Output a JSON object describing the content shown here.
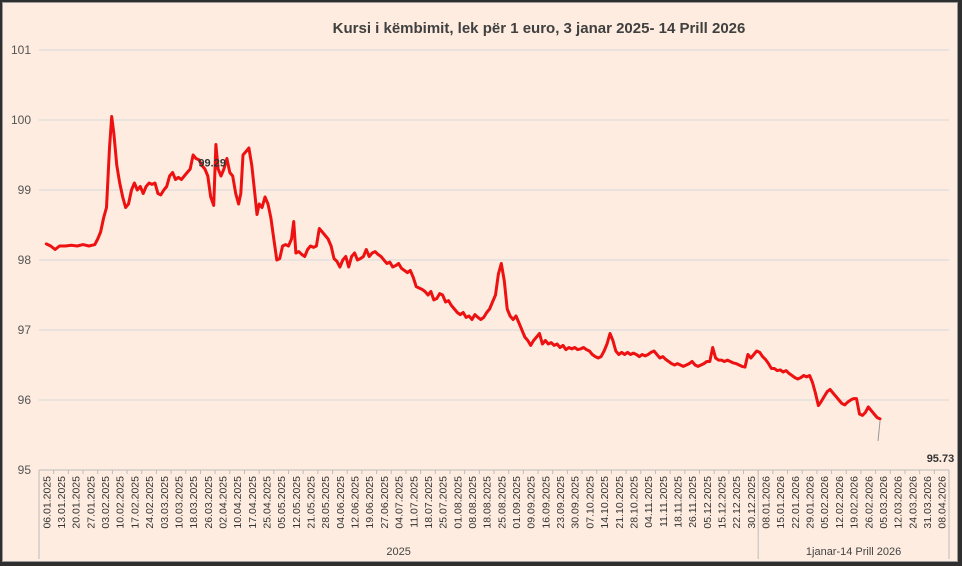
{
  "chart_data": {
    "type": "line",
    "title": "Kursi i këmbimit, lek për 1 euro, 3 janar 2025- 14 Prill 2026",
    "xlabel": "",
    "ylabel": "",
    "ylim": [
      95,
      101
    ],
    "yticks": [
      "95",
      "96",
      "97",
      "98",
      "99",
      "100",
      "101"
    ],
    "grid": "horizontal",
    "legend": "none",
    "colors": {
      "line": "#ee1111",
      "grid": "#d8d8d8",
      "background": "#fdecdf"
    },
    "x_tick_labels": [
      "06.01.2025",
      "13.01.2025",
      "20.01.2025",
      "27.01.2025",
      "03.02.2025",
      "10.02.2025",
      "17.02.2025",
      "24.02.2025",
      "03.03.2025",
      "10.03.2025",
      "18.03.2025",
      "26.03.2025",
      "02.04.2025",
      "10.04.2025",
      "17.04.2025",
      "25.04.2025",
      "05.05.2025",
      "12.05.2025",
      "21.05.2025",
      "28.05.2025",
      "04.06.2025",
      "12.06.2025",
      "19.06.2025",
      "27.06.2025",
      "04.07.2025",
      "11.07.2025",
      "18.07.2025",
      "25.07.2025",
      "01.08.2025",
      "08.08.2025",
      "18.08.2025",
      "25.08.2025",
      "01.09.2025",
      "09.09.2025",
      "16.09.2025",
      "23.09.2025",
      "30.09.2025",
      "07.10.2025",
      "14.10.2025",
      "21.10.2025",
      "28.10.2025",
      "04.11.2025",
      "11.11.2025",
      "18.11.2025",
      "26.11.2025",
      "05.12.2025",
      "15.12.2025",
      "22.12.2025",
      "30.12.2025",
      "08.01.2026",
      "15.01.2026",
      "22.01.2026",
      "29.01.2026",
      "05.02.2026",
      "12.02.2026",
      "19.02.2026",
      "26.02.2026",
      "05.03.2026",
      "12.03.2026",
      "24.03.2026",
      "31.03.2026",
      "08.04.2026"
    ],
    "groups": [
      {
        "label": "2025",
        "start_index": 0,
        "end_index": 48
      },
      {
        "label": "1janar-14 Prill 2026",
        "start_index": 49,
        "end_index": 61
      }
    ],
    "annotations": [
      {
        "text": "99.29",
        "x_index": 11.3,
        "y": 99.29
      },
      {
        "text": "95.73",
        "x_index": 61.6,
        "y": 95.73
      }
    ],
    "series": [
      {
        "points": [
          [
            0,
            98.23
          ],
          [
            0.3,
            98.2
          ],
          [
            0.6,
            98.15
          ],
          [
            0.9,
            98.2
          ],
          [
            1.3,
            98.2
          ],
          [
            1.7,
            98.21
          ],
          [
            2.1,
            98.2
          ],
          [
            2.5,
            98.22
          ],
          [
            2.9,
            98.2
          ],
          [
            3.3,
            98.22
          ],
          [
            3.5,
            98.3
          ],
          [
            3.7,
            98.4
          ],
          [
            3.9,
            98.6
          ],
          [
            4.1,
            98.75
          ],
          [
            4.3,
            99.6
          ],
          [
            4.45,
            100.05
          ],
          [
            4.6,
            99.8
          ],
          [
            4.8,
            99.35
          ],
          [
            5.0,
            99.1
          ],
          [
            5.2,
            98.9
          ],
          [
            5.4,
            98.75
          ],
          [
            5.6,
            98.8
          ],
          [
            5.8,
            99.0
          ],
          [
            6.0,
            99.1
          ],
          [
            6.2,
            99.0
          ],
          [
            6.4,
            99.05
          ],
          [
            6.6,
            98.95
          ],
          [
            6.8,
            99.05
          ],
          [
            7.0,
            99.1
          ],
          [
            7.2,
            99.08
          ],
          [
            7.4,
            99.1
          ],
          [
            7.6,
            98.95
          ],
          [
            7.8,
            98.93
          ],
          [
            8.0,
            99.0
          ],
          [
            8.2,
            99.05
          ],
          [
            8.4,
            99.2
          ],
          [
            8.6,
            99.25
          ],
          [
            8.8,
            99.15
          ],
          [
            9.0,
            99.18
          ],
          [
            9.2,
            99.15
          ],
          [
            9.4,
            99.2
          ],
          [
            9.6,
            99.25
          ],
          [
            9.8,
            99.3
          ],
          [
            10.0,
            99.5
          ],
          [
            10.2,
            99.45
          ],
          [
            10.4,
            99.43
          ],
          [
            10.6,
            99.35
          ],
          [
            10.8,
            99.3
          ],
          [
            11.0,
            99.2
          ],
          [
            11.2,
            98.9
          ],
          [
            11.4,
            98.78
          ],
          [
            11.55,
            99.65
          ],
          [
            11.7,
            99.3
          ],
          [
            11.9,
            99.2
          ],
          [
            12.1,
            99.3
          ],
          [
            12.3,
            99.45
          ],
          [
            12.5,
            99.25
          ],
          [
            12.7,
            99.2
          ],
          [
            12.9,
            98.95
          ],
          [
            13.1,
            98.8
          ],
          [
            13.25,
            98.95
          ],
          [
            13.4,
            99.5
          ],
          [
            13.6,
            99.55
          ],
          [
            13.8,
            99.6
          ],
          [
            14.0,
            99.35
          ],
          [
            14.2,
            98.95
          ],
          [
            14.35,
            98.65
          ],
          [
            14.5,
            98.8
          ],
          [
            14.7,
            98.75
          ],
          [
            14.9,
            98.9
          ],
          [
            15.1,
            98.8
          ],
          [
            15.3,
            98.6
          ],
          [
            15.5,
            98.3
          ],
          [
            15.7,
            98.0
          ],
          [
            15.9,
            98.02
          ],
          [
            16.1,
            98.2
          ],
          [
            16.3,
            98.22
          ],
          [
            16.5,
            98.2
          ],
          [
            16.7,
            98.3
          ],
          [
            16.85,
            98.55
          ],
          [
            17.0,
            98.1
          ],
          [
            17.2,
            98.12
          ],
          [
            17.4,
            98.08
          ],
          [
            17.6,
            98.05
          ],
          [
            17.8,
            98.15
          ],
          [
            18.0,
            98.2
          ],
          [
            18.2,
            98.18
          ],
          [
            18.4,
            98.2
          ],
          [
            18.6,
            98.45
          ],
          [
            18.8,
            98.4
          ],
          [
            19.0,
            98.35
          ],
          [
            19.2,
            98.3
          ],
          [
            19.4,
            98.2
          ],
          [
            19.6,
            98.02
          ],
          [
            19.8,
            97.98
          ],
          [
            20.0,
            97.9
          ],
          [
            20.2,
            98.0
          ],
          [
            20.4,
            98.05
          ],
          [
            20.6,
            97.9
          ],
          [
            20.8,
            98.05
          ],
          [
            21.0,
            98.1
          ],
          [
            21.2,
            98.0
          ],
          [
            21.4,
            98.02
          ],
          [
            21.6,
            98.05
          ],
          [
            21.8,
            98.15
          ],
          [
            22.0,
            98.05
          ],
          [
            22.2,
            98.1
          ],
          [
            22.4,
            98.12
          ],
          [
            22.6,
            98.08
          ],
          [
            22.8,
            98.05
          ],
          [
            23.0,
            98.0
          ],
          [
            23.2,
            97.95
          ],
          [
            23.4,
            97.97
          ],
          [
            23.6,
            97.9
          ],
          [
            23.8,
            97.92
          ],
          [
            24.0,
            97.95
          ],
          [
            24.2,
            97.88
          ],
          [
            24.4,
            97.85
          ],
          [
            24.6,
            97.82
          ],
          [
            24.8,
            97.85
          ],
          [
            25.0,
            97.75
          ],
          [
            25.2,
            97.62
          ],
          [
            25.4,
            97.6
          ],
          [
            25.6,
            97.58
          ],
          [
            25.8,
            97.55
          ],
          [
            26.0,
            97.5
          ],
          [
            26.2,
            97.55
          ],
          [
            26.4,
            97.43
          ],
          [
            26.6,
            97.45
          ],
          [
            26.8,
            97.52
          ],
          [
            27.0,
            97.5
          ],
          [
            27.2,
            97.4
          ],
          [
            27.4,
            97.42
          ],
          [
            27.6,
            97.35
          ],
          [
            27.8,
            97.3
          ],
          [
            28.0,
            97.25
          ],
          [
            28.2,
            97.22
          ],
          [
            28.4,
            97.25
          ],
          [
            28.6,
            97.18
          ],
          [
            28.8,
            97.2
          ],
          [
            29.0,
            97.15
          ],
          [
            29.2,
            97.22
          ],
          [
            29.4,
            97.18
          ],
          [
            29.6,
            97.15
          ],
          [
            29.8,
            97.18
          ],
          [
            30.0,
            97.25
          ],
          [
            30.2,
            97.3
          ],
          [
            30.4,
            97.4
          ],
          [
            30.6,
            97.5
          ],
          [
            30.8,
            97.8
          ],
          [
            31.0,
            97.95
          ],
          [
            31.2,
            97.7
          ],
          [
            31.4,
            97.3
          ],
          [
            31.6,
            97.2
          ],
          [
            31.8,
            97.15
          ],
          [
            32.0,
            97.2
          ],
          [
            32.2,
            97.1
          ],
          [
            32.4,
            97.0
          ],
          [
            32.6,
            96.9
          ],
          [
            32.8,
            96.85
          ],
          [
            33.0,
            96.78
          ],
          [
            33.2,
            96.85
          ],
          [
            33.4,
            96.9
          ],
          [
            33.6,
            96.95
          ],
          [
            33.8,
            96.8
          ],
          [
            34.0,
            96.85
          ],
          [
            34.2,
            96.8
          ],
          [
            34.4,
            96.82
          ],
          [
            34.6,
            96.78
          ],
          [
            34.8,
            96.8
          ],
          [
            35.0,
            96.75
          ],
          [
            35.2,
            96.78
          ],
          [
            35.4,
            96.72
          ],
          [
            35.6,
            96.75
          ],
          [
            35.8,
            96.73
          ],
          [
            36.0,
            96.75
          ],
          [
            36.2,
            96.72
          ],
          [
            36.4,
            96.73
          ],
          [
            36.6,
            96.75
          ],
          [
            36.8,
            96.72
          ],
          [
            37.0,
            96.7
          ],
          [
            37.2,
            96.65
          ],
          [
            37.4,
            96.62
          ],
          [
            37.6,
            96.6
          ],
          [
            37.8,
            96.62
          ],
          [
            38.0,
            96.7
          ],
          [
            38.2,
            96.8
          ],
          [
            38.4,
            96.95
          ],
          [
            38.6,
            96.85
          ],
          [
            38.8,
            96.7
          ],
          [
            39.0,
            96.65
          ],
          [
            39.2,
            96.68
          ],
          [
            39.4,
            96.65
          ],
          [
            39.6,
            96.68
          ],
          [
            39.8,
            96.65
          ],
          [
            40.0,
            96.67
          ],
          [
            40.2,
            96.65
          ],
          [
            40.4,
            96.62
          ],
          [
            40.6,
            96.65
          ],
          [
            40.8,
            96.63
          ],
          [
            41.0,
            96.65
          ],
          [
            41.2,
            96.68
          ],
          [
            41.4,
            96.7
          ],
          [
            41.6,
            96.65
          ],
          [
            41.8,
            96.6
          ],
          [
            42.0,
            96.62
          ],
          [
            42.2,
            96.58
          ],
          [
            42.4,
            96.55
          ],
          [
            42.6,
            96.52
          ],
          [
            42.8,
            96.5
          ],
          [
            43.0,
            96.52
          ],
          [
            43.2,
            96.5
          ],
          [
            43.4,
            96.48
          ],
          [
            43.6,
            96.5
          ],
          [
            43.8,
            96.52
          ],
          [
            44.0,
            96.55
          ],
          [
            44.2,
            96.5
          ],
          [
            44.4,
            96.48
          ],
          [
            44.6,
            96.5
          ],
          [
            44.8,
            96.52
          ],
          [
            45.0,
            96.55
          ],
          [
            45.2,
            96.55
          ],
          [
            45.4,
            96.75
          ],
          [
            45.6,
            96.6
          ],
          [
            45.8,
            96.57
          ],
          [
            46.0,
            96.57
          ],
          [
            46.2,
            96.55
          ],
          [
            46.4,
            96.57
          ],
          [
            46.6,
            96.55
          ],
          [
            46.8,
            96.53
          ],
          [
            47.0,
            96.52
          ],
          [
            47.2,
            96.5
          ],
          [
            47.4,
            96.48
          ],
          [
            47.6,
            96.47
          ],
          [
            47.8,
            96.65
          ],
          [
            48.0,
            96.6
          ],
          [
            48.2,
            96.65
          ],
          [
            48.4,
            96.7
          ],
          [
            48.6,
            96.68
          ],
          [
            48.8,
            96.62
          ],
          [
            49.0,
            96.58
          ],
          [
            49.2,
            96.52
          ],
          [
            49.4,
            96.45
          ],
          [
            49.6,
            96.45
          ],
          [
            49.8,
            96.42
          ],
          [
            50.0,
            96.43
          ],
          [
            50.2,
            96.4
          ],
          [
            50.4,
            96.42
          ],
          [
            50.6,
            96.38
          ],
          [
            50.8,
            96.35
          ],
          [
            51.0,
            96.32
          ],
          [
            51.2,
            96.3
          ],
          [
            51.4,
            96.32
          ],
          [
            51.6,
            96.35
          ],
          [
            51.8,
            96.33
          ],
          [
            52.0,
            96.35
          ],
          [
            52.2,
            96.25
          ],
          [
            52.4,
            96.1
          ],
          [
            52.6,
            95.92
          ],
          [
            52.8,
            95.98
          ],
          [
            53.0,
            96.05
          ],
          [
            53.2,
            96.12
          ],
          [
            53.4,
            96.15
          ],
          [
            53.6,
            96.1
          ],
          [
            53.8,
            96.05
          ],
          [
            54.0,
            96.0
          ],
          [
            54.2,
            95.95
          ],
          [
            54.4,
            95.93
          ],
          [
            54.6,
            95.97
          ],
          [
            54.8,
            96.0
          ],
          [
            55.0,
            96.02
          ],
          [
            55.2,
            96.02
          ],
          [
            55.4,
            95.8
          ],
          [
            55.6,
            95.78
          ],
          [
            55.8,
            95.82
          ],
          [
            56.0,
            95.9
          ],
          [
            56.2,
            95.85
          ],
          [
            56.4,
            95.8
          ],
          [
            56.6,
            95.75
          ],
          [
            56.8,
            95.73
          ]
        ]
      }
    ]
  }
}
